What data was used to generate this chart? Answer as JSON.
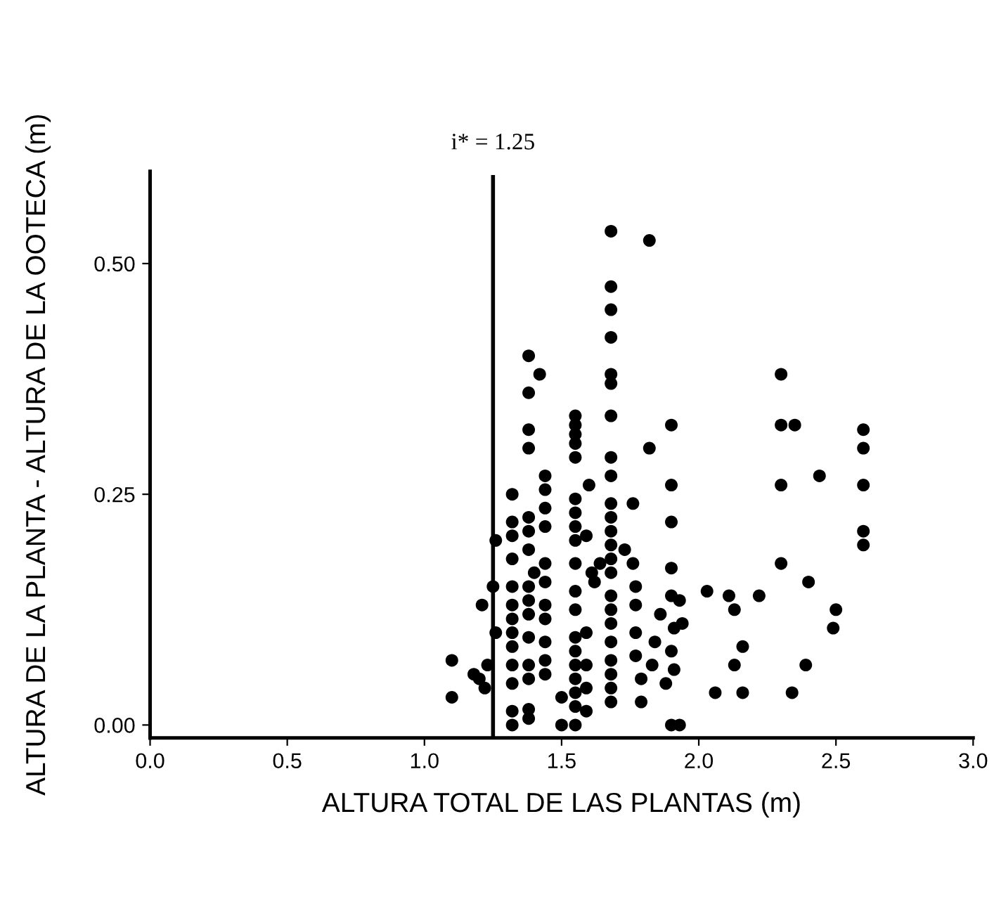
{
  "chart_data": {
    "type": "scatter",
    "xlabel": "ALTURA TOTAL DE LAS PLANTAS (m)",
    "ylabel": "ALTURA DE LA PLANTA - ALTURA DE LA OOTECA (m)",
    "xlim": [
      0,
      3.0
    ],
    "ylim": [
      -0.014,
      0.6
    ],
    "xticks": [
      {
        "value": 0,
        "label": "0.0"
      },
      0.5,
      {
        "value": 1,
        "label": "1.0"
      },
      1.5,
      {
        "value": 2,
        "label": "2.0"
      },
      2.5,
      {
        "value": 3,
        "label": "3.0"
      }
    ],
    "yticks": [
      {
        "value": 0,
        "label": "0.00"
      },
      0.25,
      {
        "value": 0.5,
        "label": "0.50"
      }
    ],
    "grid": false,
    "marker": "circle",
    "ref_lines": [
      {
        "axis": "x",
        "value": 1.25,
        "label": "i* = 1.25",
        "color": "#000000",
        "line_style": "solid"
      }
    ],
    "series": [
      {
        "color": "#000000",
        "x": [
          1.1,
          1.1,
          1.21,
          1.25,
          1.2,
          1.22,
          1.23,
          1.18,
          1.26,
          1.26,
          1.32,
          1.32,
          1.32,
          1.32,
          1.32,
          1.32,
          1.32,
          1.32,
          1.32,
          1.32,
          1.32,
          1.32,
          1.32,
          1.38,
          1.38,
          1.38,
          1.38,
          1.38,
          1.38,
          1.38,
          1.38,
          1.38,
          1.38,
          1.38,
          1.38,
          1.38,
          1.38,
          1.38,
          1.42,
          1.4,
          1.44,
          1.44,
          1.44,
          1.44,
          1.44,
          1.44,
          1.44,
          1.44,
          1.44,
          1.44,
          1.44,
          1.5,
          1.5,
          1.55,
          1.55,
          1.55,
          1.55,
          1.55,
          1.55,
          1.55,
          1.55,
          1.55,
          1.55,
          1.55,
          1.55,
          1.55,
          1.55,
          1.55,
          1.55,
          1.55,
          1.55,
          1.55,
          1.6,
          1.59,
          1.61,
          1.62,
          1.59,
          1.59,
          1.59,
          1.59,
          1.64,
          1.68,
          1.68,
          1.68,
          1.68,
          1.68,
          1.68,
          1.68,
          1.68,
          1.68,
          1.68,
          1.68,
          1.68,
          1.68,
          1.68,
          1.68,
          1.68,
          1.68,
          1.68,
          1.68,
          1.68,
          1.68,
          1.68,
          1.68,
          1.73,
          1.76,
          1.77,
          1.77,
          1.77,
          1.77,
          1.79,
          1.79,
          1.82,
          1.82,
          1.76,
          1.9,
          1.9,
          1.9,
          1.9,
          1.9,
          1.93,
          1.91,
          1.9,
          1.91,
          1.88,
          1.9,
          1.93,
          1.94,
          1.86,
          1.84,
          1.83,
          2.03,
          2.11,
          2.13,
          2.22,
          2.16,
          2.13,
          2.06,
          2.16,
          2.3,
          2.3,
          2.35,
          2.3,
          2.3,
          2.44,
          2.4,
          2.5,
          2.49,
          2.39,
          2.34,
          2.6,
          2.6,
          2.6,
          2.6,
          2.6
        ],
        "values": [
          0.07,
          0.03,
          0.13,
          0.15,
          0.05,
          0.04,
          0.065,
          0.055,
          0.2,
          0.1,
          0.25,
          0.22,
          0.205,
          0.18,
          0.15,
          0.13,
          0.115,
          0.1,
          0.085,
          0.065,
          0.045,
          0.015,
          0.0,
          0.4,
          0.36,
          0.32,
          0.3,
          0.225,
          0.21,
          0.19,
          0.15,
          0.135,
          0.12,
          0.095,
          0.065,
          0.05,
          0.017,
          0.007,
          0.38,
          0.165,
          0.27,
          0.255,
          0.235,
          0.215,
          0.175,
          0.155,
          0.13,
          0.115,
          0.09,
          0.07,
          0.055,
          0.03,
          0.0,
          0.335,
          0.325,
          0.315,
          0.305,
          0.29,
          0.245,
          0.23,
          0.215,
          0.2,
          0.175,
          0.145,
          0.125,
          0.095,
          0.08,
          0.065,
          0.05,
          0.035,
          0.02,
          0.0,
          0.26,
          0.205,
          0.165,
          0.155,
          0.1,
          0.065,
          0.04,
          0.015,
          0.175,
          0.535,
          0.475,
          0.45,
          0.42,
          0.38,
          0.37,
          0.335,
          0.29,
          0.27,
          0.24,
          0.225,
          0.21,
          0.195,
          0.18,
          0.165,
          0.14,
          0.125,
          0.11,
          0.09,
          0.07,
          0.055,
          0.04,
          0.025,
          0.19,
          0.175,
          0.15,
          0.13,
          0.1,
          0.075,
          0.05,
          0.025,
          0.525,
          0.3,
          0.24,
          0.325,
          0.26,
          0.22,
          0.17,
          0.14,
          0.135,
          0.105,
          0.08,
          0.06,
          0.045,
          0.0,
          0.0,
          0.11,
          0.12,
          0.09,
          0.065,
          0.145,
          0.14,
          0.125,
          0.14,
          0.085,
          0.065,
          0.035,
          0.035,
          0.38,
          0.325,
          0.325,
          0.26,
          0.175,
          0.27,
          0.155,
          0.125,
          0.105,
          0.065,
          0.035,
          0.32,
          0.3,
          0.26,
          0.21,
          0.195
        ]
      }
    ]
  }
}
